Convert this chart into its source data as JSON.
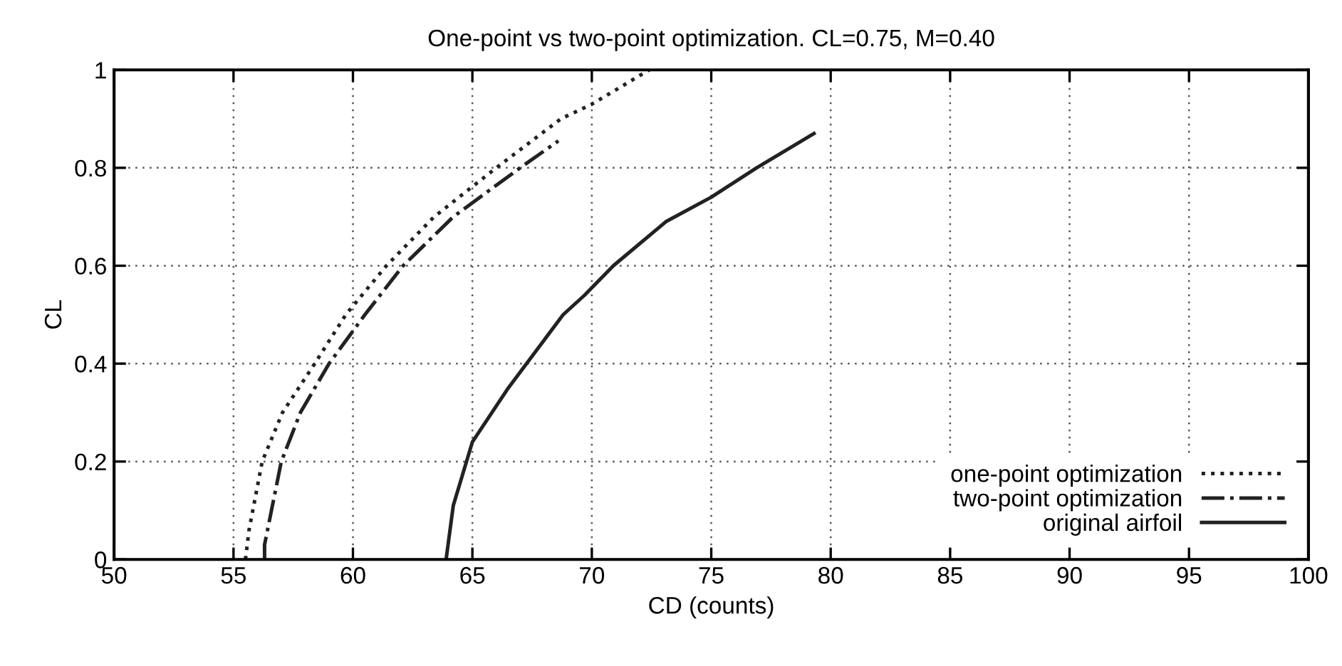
{
  "chart_data": {
    "type": "line",
    "title": "One-point vs two-point optimization. CL=0.75, M=0.40",
    "xlabel": "CD (counts)",
    "ylabel": "CL",
    "xlim": [
      50,
      100
    ],
    "xticks": [
      50,
      55,
      60,
      65,
      70,
      75,
      80,
      85,
      90,
      95,
      100
    ],
    "ylim": [
      0,
      1
    ],
    "yticks": [
      0,
      0.2,
      0.4,
      0.6,
      0.8,
      1
    ],
    "grid": true,
    "legend": "bottom right",
    "marker": "none",
    "series": [
      {
        "name": "one-point optimization",
        "color": "#222222",
        "line_style": "dotted",
        "x": [
          55.5,
          55.65,
          56.2,
          57.05,
          58.4,
          59.7,
          61.4,
          63.4,
          66.0,
          68.7,
          70.0,
          72.4
        ],
        "values": [
          0,
          0.06,
          0.2,
          0.3,
          0.4,
          0.5,
          0.6,
          0.7,
          0.8,
          0.9,
          0.93,
          1.0
        ]
      },
      {
        "name": "two-point optimization",
        "color": "#222222",
        "line_style": "dashdot",
        "x": [
          56.3,
          56.3,
          57.0,
          57.8,
          59.0,
          60.5,
          62.1,
          64.2,
          67.0,
          68.6
        ],
        "values": [
          0,
          0.03,
          0.2,
          0.3,
          0.4,
          0.5,
          0.6,
          0.7,
          0.8,
          0.855
        ]
      },
      {
        "name": "original airfoil",
        "color": "#222222",
        "line_style": "solid",
        "x": [
          63.9,
          64.2,
          65.0,
          66.5,
          68.8,
          69.7,
          70.9,
          73.1,
          75.0,
          76.9,
          79.3
        ],
        "values": [
          0,
          0.11,
          0.24,
          0.35,
          0.5,
          0.54,
          0.6,
          0.69,
          0.74,
          0.8,
          0.87
        ]
      }
    ]
  }
}
